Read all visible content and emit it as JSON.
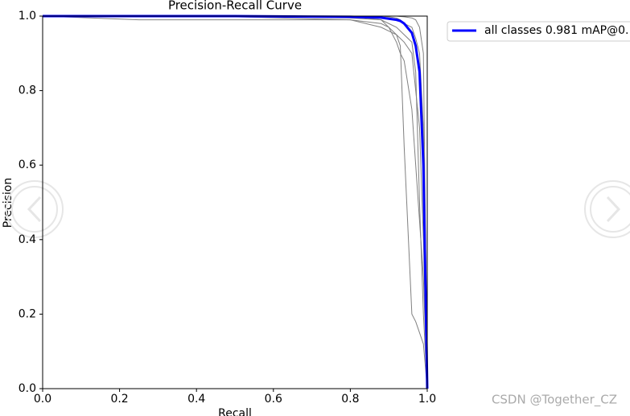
{
  "chart_data": {
    "type": "line",
    "title": "Precision-Recall Curve",
    "x_label": "Recall",
    "y_label": "Precision",
    "x": [
      0,
      0.25,
      0.5,
      0.8,
      0.88,
      0.9,
      0.92,
      0.93,
      0.94,
      0.96,
      0.97,
      0.98,
      0.99,
      1.0
    ],
    "series": [
      {
        "color": "#808080",
        "values": [
          1,
          0.99,
          0.99,
          0.99,
          0.98,
          0.97,
          0.95,
          0.92,
          0.65,
          0.2,
          0.18,
          0.15,
          0.12,
          0
        ]
      },
      {
        "color": "#808080",
        "values": [
          1,
          1,
          1,
          0.995,
          0.99,
          0.97,
          0.93,
          0.9,
          0.88,
          0.75,
          0.6,
          0.45,
          0.3,
          0
        ]
      },
      {
        "color": "#808080",
        "values": [
          1,
          1,
          1,
          1,
          1,
          0.998,
          0.995,
          0.99,
          0.98,
          0.97,
          0.94,
          0.9,
          0.7,
          0
        ]
      },
      {
        "color": "#808080",
        "values": [
          1,
          1,
          1,
          1,
          0.99,
          0.98,
          0.97,
          0.96,
          0.95,
          0.93,
          0.85,
          0.5,
          0.2,
          0
        ]
      },
      {
        "color": "#808080",
        "values": [
          1,
          1,
          0.998,
          0.99,
          0.97,
          0.96,
          0.95,
          0.94,
          0.93,
          0.9,
          0.8,
          0.7,
          0.4,
          0
        ]
      },
      {
        "color": "#808080",
        "values": [
          1,
          1,
          1,
          1,
          1,
          1,
          1,
          0.999,
          0.998,
          0.995,
          0.99,
          0.97,
          0.9,
          0
        ]
      },
      {
        "name": "all classes 0.981 mAP@0.",
        "color": "#0000ff",
        "values": [
          1,
          1,
          1,
          0.998,
          0.996,
          0.993,
          0.99,
          0.987,
          0.98,
          0.955,
          0.92,
          0.85,
          0.6,
          0
        ]
      }
    ],
    "xlim": [
      0,
      1
    ],
    "ylim": [
      0,
      1
    ],
    "xticks": [
      {
        "value": 0,
        "label": "0.0"
      },
      0.2,
      0.4,
      0.6,
      0.8,
      {
        "value": 1,
        "label": "1.0"
      }
    ],
    "yticks": [
      {
        "value": 0,
        "label": "0.0"
      },
      0.2,
      0.4,
      0.6,
      0.8,
      {
        "value": 1,
        "label": "1.0"
      }
    ],
    "legend": "upper-right-outside"
  },
  "watermark": "CSDN @Together_CZ"
}
